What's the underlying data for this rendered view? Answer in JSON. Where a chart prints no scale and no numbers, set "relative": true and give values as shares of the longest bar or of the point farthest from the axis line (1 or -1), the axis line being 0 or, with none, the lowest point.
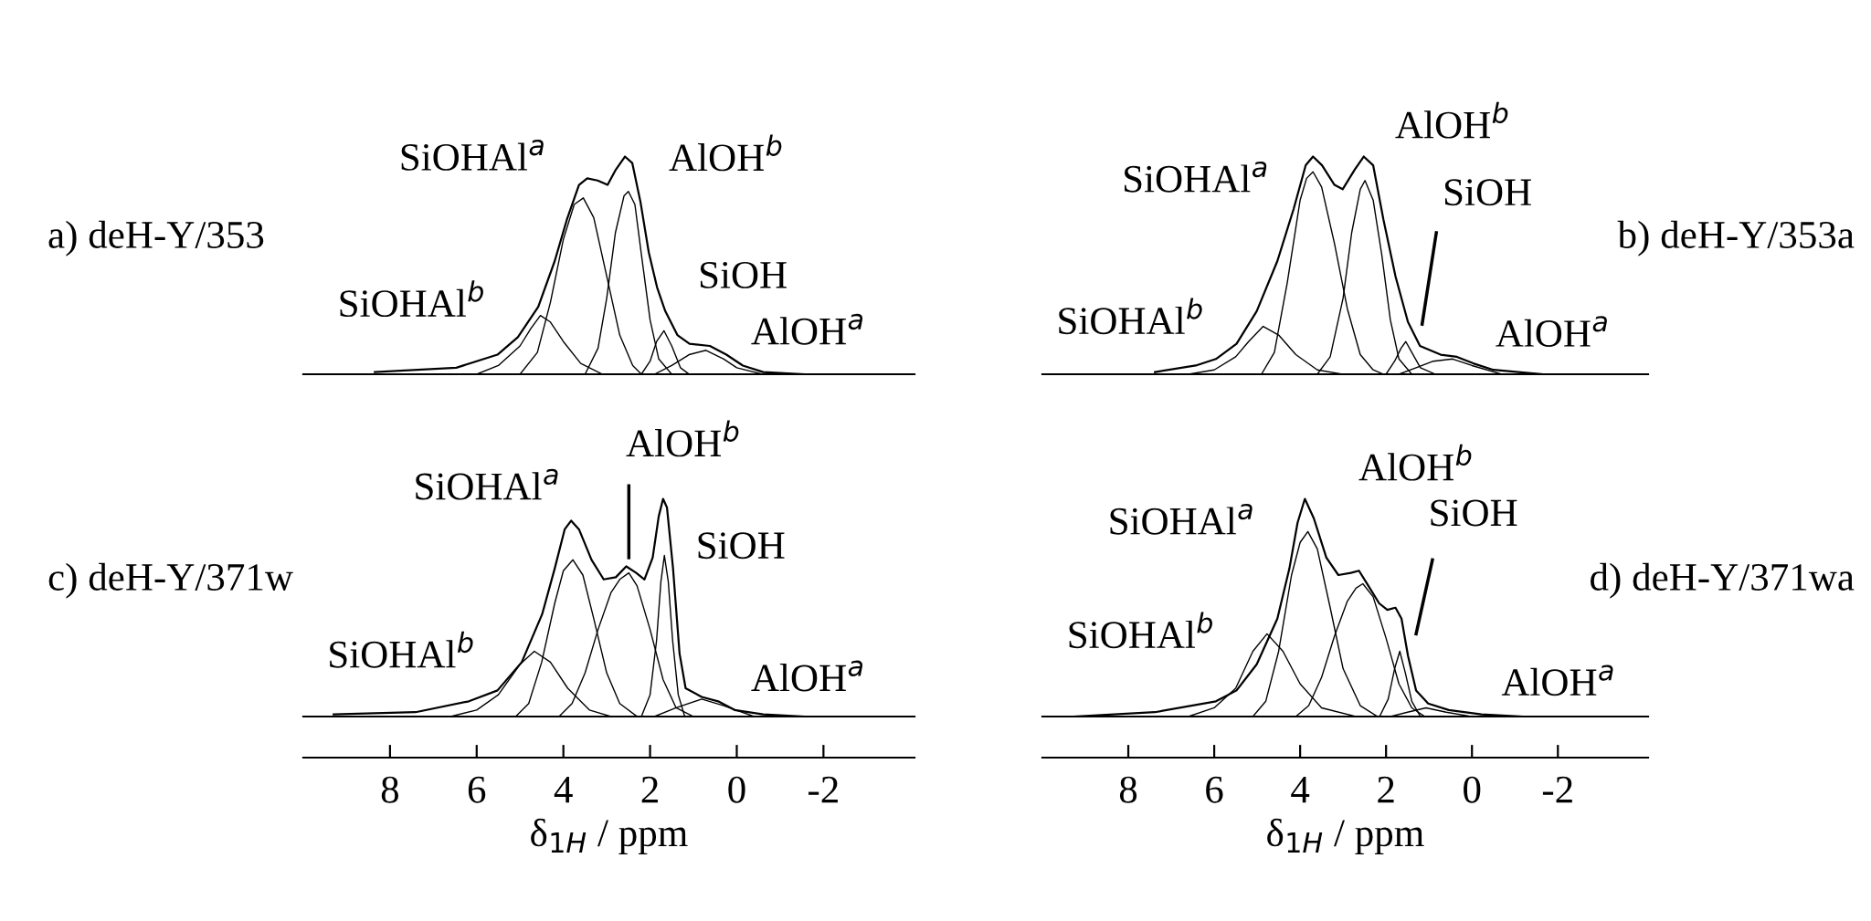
{
  "chart_data": [
    {
      "type": "line",
      "title": "a) deH-Y/353",
      "relative": true,
      "xlim": [
        10,
        -4.1
      ],
      "tick_labels": false,
      "series": [
        {
          "color": "#000000",
          "x": [
            8.35,
            6.47,
            5.52,
            5.05,
            4.58,
            4.2,
            3.92,
            3.64,
            3.45,
            3.21,
            2.98,
            2.79,
            2.58,
            2.41,
            2.22,
            2.03,
            1.84,
            1.65,
            1.37,
            1.09,
            0.62,
            0.24,
            -0.14,
            -0.61,
            -1.55
          ],
          "values": [
            0.01,
            0.03,
            0.09,
            0.17,
            0.31,
            0.52,
            0.71,
            0.87,
            0.9,
            0.89,
            0.87,
            0.94,
            1.0,
            0.97,
            0.79,
            0.56,
            0.4,
            0.29,
            0.18,
            0.14,
            0.13,
            0.09,
            0.04,
            0.01,
            0.0
          ]
        },
        {
          "color": "#000000",
          "x": [
            6.0,
            5.5,
            5.0,
            4.75,
            4.53,
            4.3,
            4.0,
            3.6,
            3.1
          ],
          "values": [
            0,
            0.04,
            0.13,
            0.21,
            0.27,
            0.24,
            0.15,
            0.05,
            0
          ]
        },
        {
          "color": "#000000",
          "x": [
            5.0,
            4.6,
            4.3,
            4.0,
            3.75,
            3.54,
            3.3,
            3.0,
            2.7,
            2.4,
            2.2
          ],
          "values": [
            0,
            0.1,
            0.33,
            0.62,
            0.78,
            0.81,
            0.72,
            0.45,
            0.18,
            0.04,
            0
          ]
        },
        {
          "color": "#000000",
          "x": [
            3.5,
            3.2,
            3.0,
            2.8,
            2.6,
            2.5,
            2.35,
            2.2,
            2.0,
            1.8,
            1.5
          ],
          "values": [
            0,
            0.12,
            0.35,
            0.65,
            0.82,
            0.84,
            0.78,
            0.55,
            0.25,
            0.07,
            0
          ]
        },
        {
          "color": "#000000",
          "x": [
            2.2,
            2.0,
            1.85,
            1.68,
            1.5,
            1.3,
            1.1
          ],
          "values": [
            0,
            0.06,
            0.15,
            0.2,
            0.13,
            0.03,
            0
          ]
        },
        {
          "color": "#000000",
          "x": [
            1.9,
            1.5,
            1.1,
            0.71,
            0.3,
            0.0,
            -0.6
          ],
          "values": [
            0,
            0.04,
            0.09,
            0.11,
            0.07,
            0.03,
            0
          ]
        }
      ],
      "annotations": [
        "SiOHAl$^{a}$",
        "AlOH$^{b}$",
        "SiOH",
        "AlOH$^{a}$",
        "SiOHAl$^{b}$"
      ]
    },
    {
      "type": "line",
      "title": "b) deH-Y/353a",
      "relative": true,
      "xlim": [
        10,
        -4.1
      ],
      "tick_labels": false,
      "series": [
        {
          "color": "#000000",
          "x": [
            7.38,
            6.43,
            5.96,
            5.48,
            5.01,
            4.53,
            4.15,
            3.87,
            3.7,
            3.49,
            3.2,
            3.01,
            2.73,
            2.52,
            2.3,
            2.06,
            1.78,
            1.49,
            1.21,
            0.73,
            0.35,
            -0.03,
            -0.5,
            -1.64
          ],
          "values": [
            0.01,
            0.04,
            0.07,
            0.14,
            0.29,
            0.52,
            0.76,
            0.96,
            1.0,
            0.96,
            0.87,
            0.85,
            0.94,
            1.0,
            0.96,
            0.71,
            0.45,
            0.24,
            0.13,
            0.09,
            0.08,
            0.05,
            0.02,
            0.0
          ]
        },
        {
          "color": "#000000",
          "x": [
            6.6,
            6.0,
            5.5,
            5.2,
            4.86,
            4.5,
            4.1,
            3.6,
            3.0
          ],
          "values": [
            0,
            0.02,
            0.08,
            0.15,
            0.22,
            0.18,
            0.09,
            0.02,
            0
          ]
        },
        {
          "color": "#000000",
          "x": [
            4.9,
            4.6,
            4.3,
            4.0,
            3.85,
            3.7,
            3.5,
            3.2,
            2.9,
            2.6,
            2.3,
            2.06
          ],
          "values": [
            0,
            0.1,
            0.42,
            0.8,
            0.9,
            0.93,
            0.86,
            0.6,
            0.3,
            0.09,
            0.02,
            0
          ]
        },
        {
          "color": "#000000",
          "x": [
            3.6,
            3.3,
            3.0,
            2.8,
            2.6,
            2.49,
            2.3,
            2.1,
            1.9,
            1.7,
            1.4
          ],
          "values": [
            0,
            0.08,
            0.35,
            0.65,
            0.85,
            0.89,
            0.8,
            0.55,
            0.25,
            0.07,
            0
          ]
        },
        {
          "color": "#000000",
          "x": [
            2.0,
            1.8,
            1.65,
            1.54,
            1.4,
            1.2,
            0.85
          ],
          "values": [
            0,
            0.06,
            0.12,
            0.15,
            0.1,
            0.03,
            0
          ]
        },
        {
          "color": "#000000",
          "x": [
            1.7,
            1.3,
            0.9,
            0.45,
            0.0,
            -0.7
          ],
          "values": [
            0,
            0.03,
            0.06,
            0.07,
            0.04,
            0
          ]
        }
      ],
      "annotations": [
        "AlOH$^{b}$",
        "SiOHAl$^{a}$",
        "SiOH",
        "SiOHAl$^{b}$",
        "AlOH$^{a}$"
      ]
    },
    {
      "type": "line",
      "title": "c) deH-Y/371w",
      "relative": true,
      "xlim": [
        10,
        -4.1
      ],
      "xticks": [
        8,
        6,
        4,
        2,
        0,
        -2
      ],
      "xlabel": "δ$_{1H}$ / ppm",
      "tick_labels": "x",
      "series": [
        {
          "color": "#000000",
          "x": [
            9.3,
            7.41,
            6.18,
            5.52,
            4.96,
            4.49,
            4.2,
            3.97,
            3.82,
            3.64,
            3.35,
            3.07,
            2.79,
            2.55,
            2.32,
            2.13,
            1.94,
            1.8,
            1.7,
            1.61,
            1.47,
            1.32,
            1.18,
            0.81,
            0.43,
            0.05,
            -0.61,
            -1.55
          ],
          "values": [
            0.01,
            0.02,
            0.07,
            0.12,
            0.25,
            0.47,
            0.68,
            0.86,
            0.9,
            0.86,
            0.72,
            0.63,
            0.64,
            0.69,
            0.66,
            0.63,
            0.73,
            0.92,
            1.0,
            0.96,
            0.68,
            0.29,
            0.13,
            0.09,
            0.07,
            0.03,
            0.01,
            0.0
          ]
        },
        {
          "color": "#000000",
          "x": [
            6.6,
            6.0,
            5.5,
            5.0,
            4.67,
            4.3,
            3.9,
            3.4,
            2.9
          ],
          "values": [
            0,
            0.03,
            0.1,
            0.24,
            0.3,
            0.25,
            0.13,
            0.03,
            0
          ]
        },
        {
          "color": "#000000",
          "x": [
            5.1,
            4.8,
            4.5,
            4.2,
            4.0,
            3.78,
            3.55,
            3.3,
            3.0,
            2.7,
            2.3
          ],
          "values": [
            0,
            0.06,
            0.25,
            0.52,
            0.67,
            0.72,
            0.65,
            0.45,
            0.2,
            0.06,
            0
          ]
        },
        {
          "color": "#000000",
          "x": [
            4.1,
            3.8,
            3.5,
            3.2,
            2.9,
            2.7,
            2.49,
            2.3,
            2.0,
            1.7,
            1.4,
            1.0
          ],
          "values": [
            0,
            0.06,
            0.2,
            0.4,
            0.57,
            0.63,
            0.66,
            0.6,
            0.4,
            0.17,
            0.04,
            0
          ]
        },
        {
          "color": "#000000",
          "x": [
            2.2,
            2.0,
            1.85,
            1.75,
            1.67,
            1.58,
            1.48,
            1.35,
            1.2
          ],
          "values": [
            0,
            0.1,
            0.35,
            0.62,
            0.74,
            0.62,
            0.35,
            0.1,
            0
          ]
        },
        {
          "color": "#000000",
          "x": [
            1.9,
            1.4,
            0.81,
            0.3,
            -0.4
          ],
          "values": [
            0,
            0.04,
            0.08,
            0.05,
            0
          ]
        }
      ],
      "annotations": [
        "AlOH$^{b}$",
        "SiOHAl$^{a}$",
        "SiOH",
        "SiOHAl$^{b}$",
        "AlOH$^{a}$"
      ]
    },
    {
      "type": "line",
      "title": "d) deH-Y/371wa",
      "relative": true,
      "xlim": [
        10,
        -4.1
      ],
      "xticks": [
        8,
        6,
        4,
        2,
        0,
        -2
      ],
      "xlabel": "δ$_{1H}$ / ppm",
      "tick_labels": "x",
      "series": [
        {
          "color": "#000000",
          "x": [
            9.28,
            7.38,
            5.96,
            5.48,
            5.01,
            4.53,
            4.25,
            4.06,
            3.89,
            3.68,
            3.39,
            3.11,
            2.82,
            2.63,
            2.44,
            2.16,
            1.97,
            1.78,
            1.64,
            1.49,
            1.3,
            1.02,
            0.54,
            -0.22,
            -1.17
          ],
          "values": [
            0.0,
            0.02,
            0.07,
            0.12,
            0.24,
            0.45,
            0.68,
            0.89,
            1.0,
            0.91,
            0.73,
            0.65,
            0.66,
            0.67,
            0.61,
            0.52,
            0.49,
            0.5,
            0.45,
            0.28,
            0.12,
            0.06,
            0.03,
            0.01,
            0.0
          ]
        },
        {
          "color": "#000000",
          "x": [
            6.6,
            6.0,
            5.5,
            5.1,
            4.77,
            4.4,
            4.0,
            3.5,
            2.7
          ],
          "values": [
            0,
            0.04,
            0.13,
            0.3,
            0.38,
            0.3,
            0.15,
            0.04,
            0
          ]
        },
        {
          "color": "#000000",
          "x": [
            5.1,
            4.8,
            4.5,
            4.2,
            4.0,
            3.82,
            3.6,
            3.3,
            3.0,
            2.6,
            2.2
          ],
          "values": [
            0,
            0.07,
            0.3,
            0.65,
            0.8,
            0.85,
            0.77,
            0.5,
            0.22,
            0.05,
            0
          ]
        },
        {
          "color": "#000000",
          "x": [
            4.1,
            3.8,
            3.5,
            3.2,
            2.9,
            2.7,
            2.54,
            2.3,
            2.0,
            1.7,
            1.4,
            1.1
          ],
          "values": [
            0,
            0.05,
            0.18,
            0.37,
            0.53,
            0.59,
            0.61,
            0.55,
            0.36,
            0.15,
            0.04,
            0
          ]
        },
        {
          "color": "#000000",
          "x": [
            2.15,
            1.95,
            1.8,
            1.68,
            1.55,
            1.4,
            1.2
          ],
          "values": [
            0,
            0.08,
            0.22,
            0.3,
            0.2,
            0.07,
            0
          ]
        },
        {
          "color": "#000000",
          "x": [
            1.9,
            1.5,
            1.07,
            0.6,
            0.0
          ],
          "values": [
            0,
            0.02,
            0.04,
            0.02,
            0
          ]
        }
      ],
      "annotations": [
        "AlOH$^{b}$",
        "SiOH",
        "SiOHAl$^{a}$",
        "SiOHAl$^{b}$",
        "AlOH$^{a}$"
      ]
    }
  ]
}
